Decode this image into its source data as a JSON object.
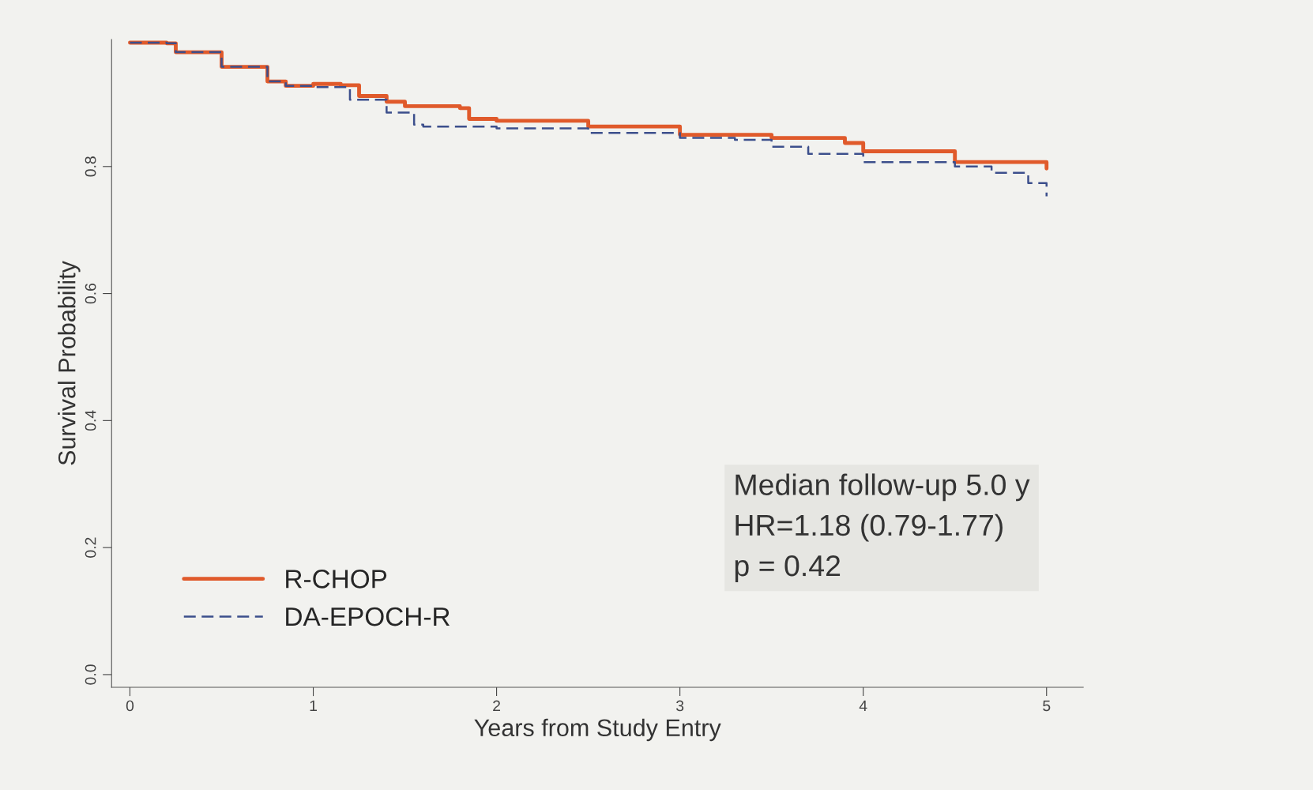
{
  "chart_data": {
    "type": "step",
    "xlabel": "Years from Study Entry",
    "ylabel": "Survival Probability",
    "xlim": [
      -0.1,
      5.2
    ],
    "ylim": [
      -0.02,
      1.0
    ],
    "xticks": [
      0,
      1,
      2,
      3,
      4,
      5
    ],
    "yticks": [
      {
        "value": 0,
        "label": "0.0"
      },
      0.2,
      0.4,
      0.6,
      0.8
    ],
    "grid": false,
    "legend": "bottom left",
    "annotations": [
      "Median follow-up 5.0 y\nHR=1.18 (0.79-1.77)\np = 0.42"
    ],
    "series": [
      {
        "name": "R-CHOP",
        "color": "#e05a2b",
        "line_style": "solid",
        "x": [
          0,
          0.2,
          0.25,
          0.5,
          0.75,
          0.85,
          1.0,
          1.15,
          1.25,
          1.4,
          1.5,
          1.8,
          1.85,
          2.0,
          2.5,
          3.0,
          3.5,
          3.9,
          4.0,
          4.5,
          5.0
        ],
        "values": [
          0.995,
          0.994,
          0.98,
          0.957,
          0.934,
          0.927,
          0.93,
          0.928,
          0.911,
          0.902,
          0.895,
          0.892,
          0.875,
          0.872,
          0.863,
          0.85,
          0.845,
          0.837,
          0.824,
          0.807,
          0.797
        ]
      },
      {
        "name": "DA-EPOCH-R",
        "color": "#3c4f8c",
        "line_style": "dashed",
        "x": [
          0,
          0.2,
          0.25,
          0.5,
          0.75,
          0.85,
          1.0,
          1.2,
          1.4,
          1.55,
          1.6,
          2.0,
          2.5,
          3.0,
          3.3,
          3.5,
          3.7,
          4.0,
          4.5,
          4.7,
          4.9,
          5.0
        ],
        "values": [
          0.995,
          0.994,
          0.98,
          0.957,
          0.934,
          0.927,
          0.925,
          0.905,
          0.885,
          0.866,
          0.863,
          0.86,
          0.853,
          0.845,
          0.842,
          0.831,
          0.82,
          0.807,
          0.8,
          0.79,
          0.774,
          0.753
        ]
      }
    ]
  }
}
